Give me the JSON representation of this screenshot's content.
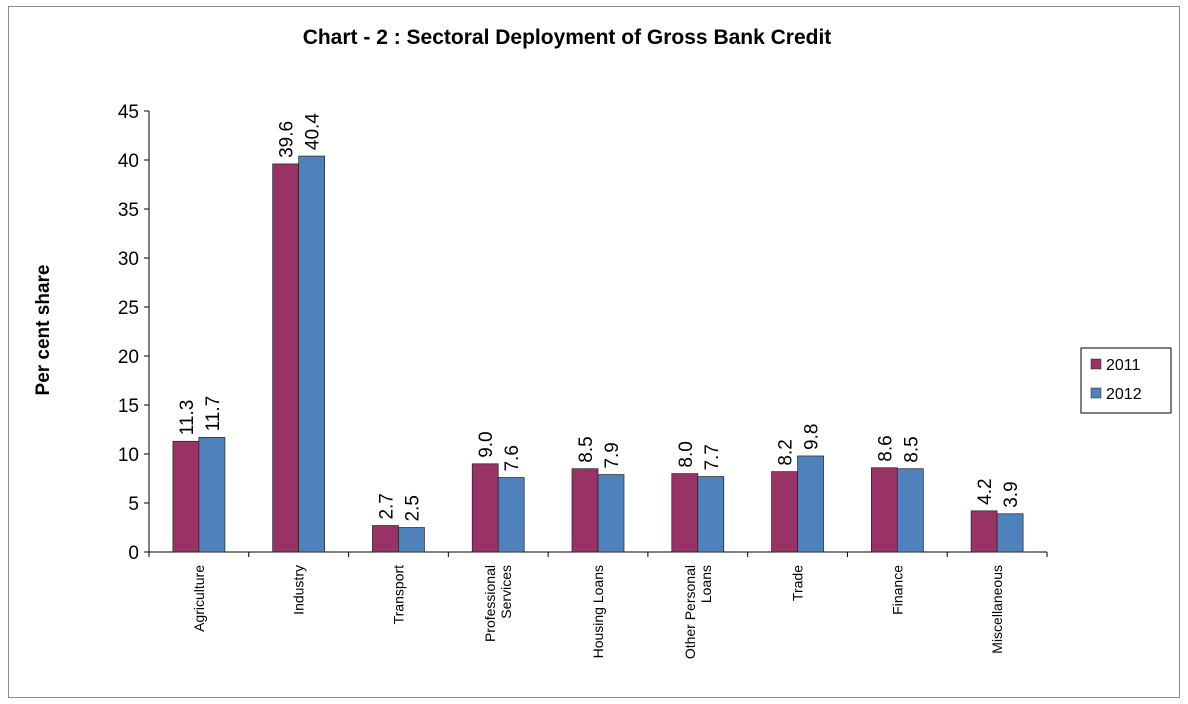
{
  "chart_data": {
    "type": "bar",
    "title": "Chart - 2 : Sectoral Deployment of Gross Bank Credit",
    "xlabel": "",
    "ylabel": "Per cent share",
    "ylim": [
      0,
      45
    ],
    "yticks": [
      0,
      5,
      10,
      15,
      20,
      25,
      30,
      35,
      40,
      45
    ],
    "grid": false,
    "legend_position": "right",
    "categories": [
      [
        "Agriculture"
      ],
      [
        "Industry"
      ],
      [
        "Transport"
      ],
      [
        "Professional",
        "Services"
      ],
      [
        "Housing Loans"
      ],
      [
        "Other Personal",
        "Loans"
      ],
      [
        "Trade"
      ],
      [
        "Finance"
      ],
      [
        "Miscellaneous"
      ]
    ],
    "series": [
      {
        "name": "2011",
        "color": "#993366",
        "values": [
          11.3,
          39.6,
          2.7,
          9.0,
          8.5,
          8.0,
          8.2,
          8.6,
          4.2
        ]
      },
      {
        "name": "2012",
        "color": "#4f81bd",
        "values": [
          11.7,
          40.4,
          2.5,
          7.6,
          7.9,
          7.7,
          9.8,
          8.5,
          3.9
        ]
      }
    ]
  }
}
